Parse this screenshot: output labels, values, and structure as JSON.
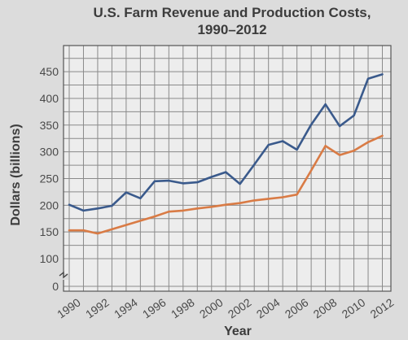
{
  "chart_data": {
    "type": "line",
    "title_line1": "U.S. Farm Revenue and Production Costs,",
    "title_line2": "1990–2012",
    "xlabel": "Year",
    "ylabel": "Dollars (billions)",
    "x_ticks": [
      "1990",
      "1992",
      "1994",
      "1996",
      "1998",
      "2000",
      "2002",
      "2004",
      "2006",
      "2008",
      "2010",
      "2012"
    ],
    "y_ticks": [
      0,
      100,
      150,
      200,
      250,
      300,
      350,
      400,
      450
    ],
    "ylim": [
      0,
      470
    ],
    "axis_break": true,
    "grid": true,
    "x": [
      1990,
      1991,
      1992,
      1993,
      1994,
      1995,
      1996,
      1997,
      1998,
      1999,
      2000,
      2001,
      2002,
      2003,
      2004,
      2005,
      2006,
      2007,
      2008,
      2009,
      2010,
      2011,
      2012
    ],
    "series": [
      {
        "color": "#3a5a8c",
        "values": [
          201,
          190,
          194,
          199,
          224,
          213,
          245,
          246,
          241,
          243,
          253,
          262,
          240,
          276,
          313,
          320,
          304,
          351,
          389,
          348,
          368,
          437,
          445
        ]
      },
      {
        "color": "#d97b45",
        "values": [
          153,
          153,
          147,
          155,
          163,
          171,
          179,
          188,
          190,
          194,
          197,
          201,
          204,
          209,
          212,
          215,
          220,
          265,
          311,
          294,
          302,
          318,
          330
        ]
      }
    ]
  }
}
